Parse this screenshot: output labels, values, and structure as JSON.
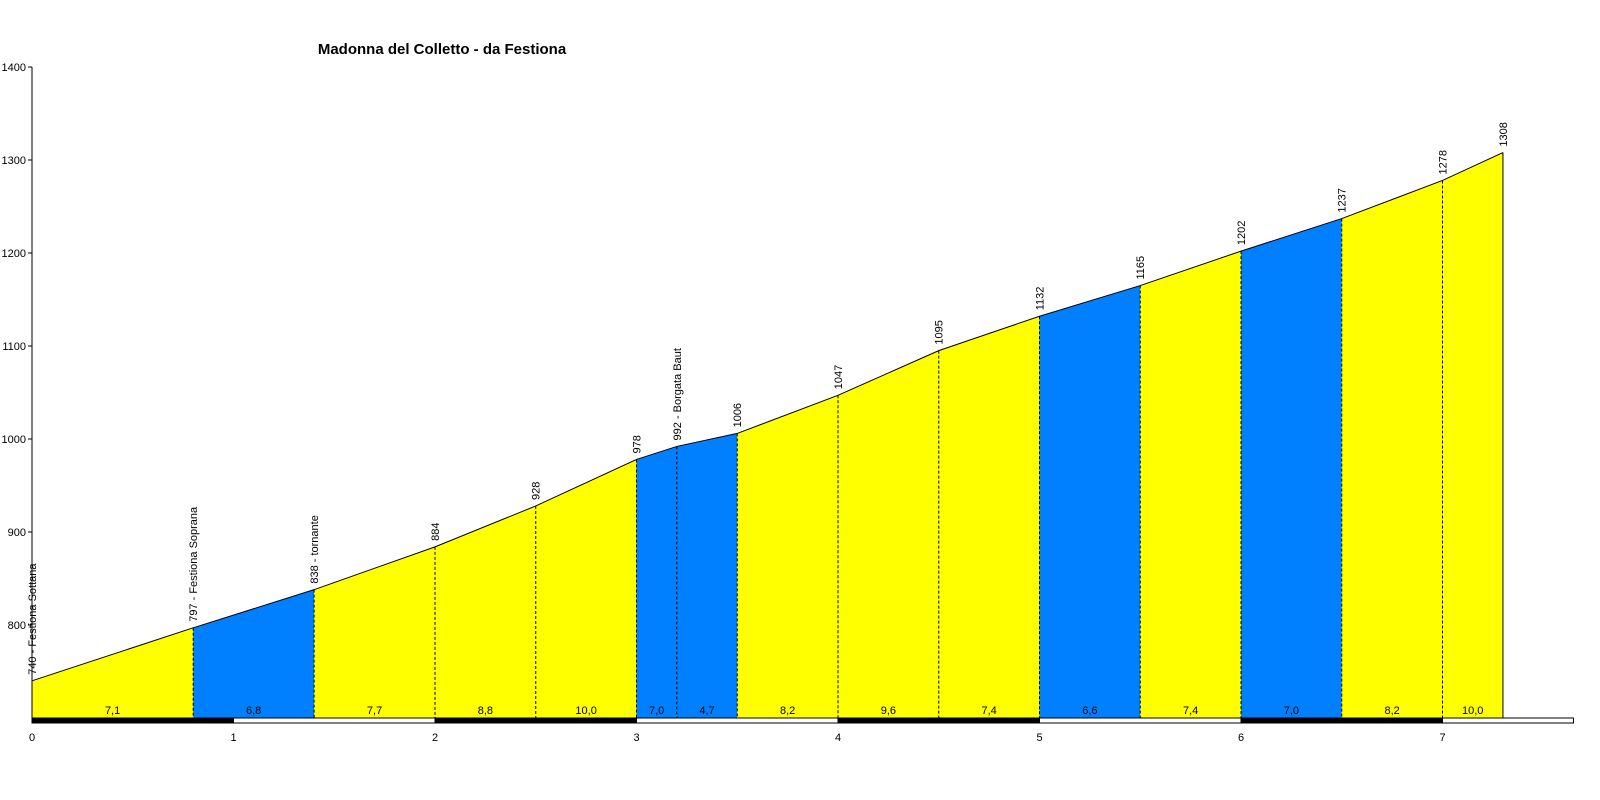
{
  "chart_data": {
    "type": "area",
    "title": "Madonna del Colletto - da Festiona",
    "xlabel": "",
    "ylabel": "",
    "xlim": [
      0,
      7.65
    ],
    "ylim": [
      700,
      1400
    ],
    "x_ticks": [
      0,
      1,
      2,
      3,
      4,
      5,
      6,
      7
    ],
    "y_ticks": [
      800,
      900,
      1000,
      1100,
      1200,
      1300,
      1400
    ],
    "profile": [
      {
        "km": 0.0,
        "elev": 740,
        "label": "740 - Festiona Sottana"
      },
      {
        "km": 0.8,
        "elev": 797,
        "label": "797 - Festiona Soprana"
      },
      {
        "km": 1.4,
        "elev": 838,
        "label": "838 - tornante"
      },
      {
        "km": 2.0,
        "elev": 884,
        "label": "884"
      },
      {
        "km": 2.5,
        "elev": 928,
        "label": "928"
      },
      {
        "km": 3.0,
        "elev": 978,
        "label": "978"
      },
      {
        "km": 3.2,
        "elev": 992,
        "label": "992 - Borgata Baut"
      },
      {
        "km": 3.5,
        "elev": 1006,
        "label": "1006"
      },
      {
        "km": 4.0,
        "elev": 1047,
        "label": "1047"
      },
      {
        "km": 4.5,
        "elev": 1095,
        "label": "1095"
      },
      {
        "km": 5.0,
        "elev": 1132,
        "label": "1132"
      },
      {
        "km": 5.5,
        "elev": 1165,
        "label": "1165"
      },
      {
        "km": 6.0,
        "elev": 1202,
        "label": "1202"
      },
      {
        "km": 6.5,
        "elev": 1237,
        "label": "1237"
      },
      {
        "km": 7.0,
        "elev": 1278,
        "label": "1278"
      },
      {
        "km": 7.3,
        "elev": 1308,
        "label": "1308"
      }
    ],
    "segments": [
      {
        "grade": "7,1",
        "color": "#ffff00"
      },
      {
        "grade": "6,8",
        "color": "#0080ff"
      },
      {
        "grade": "7,7",
        "color": "#ffff00"
      },
      {
        "grade": "8,8",
        "color": "#ffff00"
      },
      {
        "grade": "10,0",
        "color": "#ffff00"
      },
      {
        "grade": "7,0",
        "color": "#0080ff"
      },
      {
        "grade": "4,7",
        "color": "#0080ff"
      },
      {
        "grade": "8,2",
        "color": "#ffff00"
      },
      {
        "grade": "9,6",
        "color": "#ffff00"
      },
      {
        "grade": "7,4",
        "color": "#ffff00"
      },
      {
        "grade": "6,6",
        "color": "#0080ff"
      },
      {
        "grade": "7,4",
        "color": "#ffff00"
      },
      {
        "grade": "7,0",
        "color": "#0080ff"
      },
      {
        "grade": "8,2",
        "color": "#ffff00"
      },
      {
        "grade": "10,0",
        "color": "#ffff00"
      }
    ],
    "colors": {
      "yellow": "#ffff00",
      "blue": "#0080ff",
      "outline": "#000000",
      "background": "#ffffff"
    },
    "grid": false,
    "legend": "none"
  }
}
